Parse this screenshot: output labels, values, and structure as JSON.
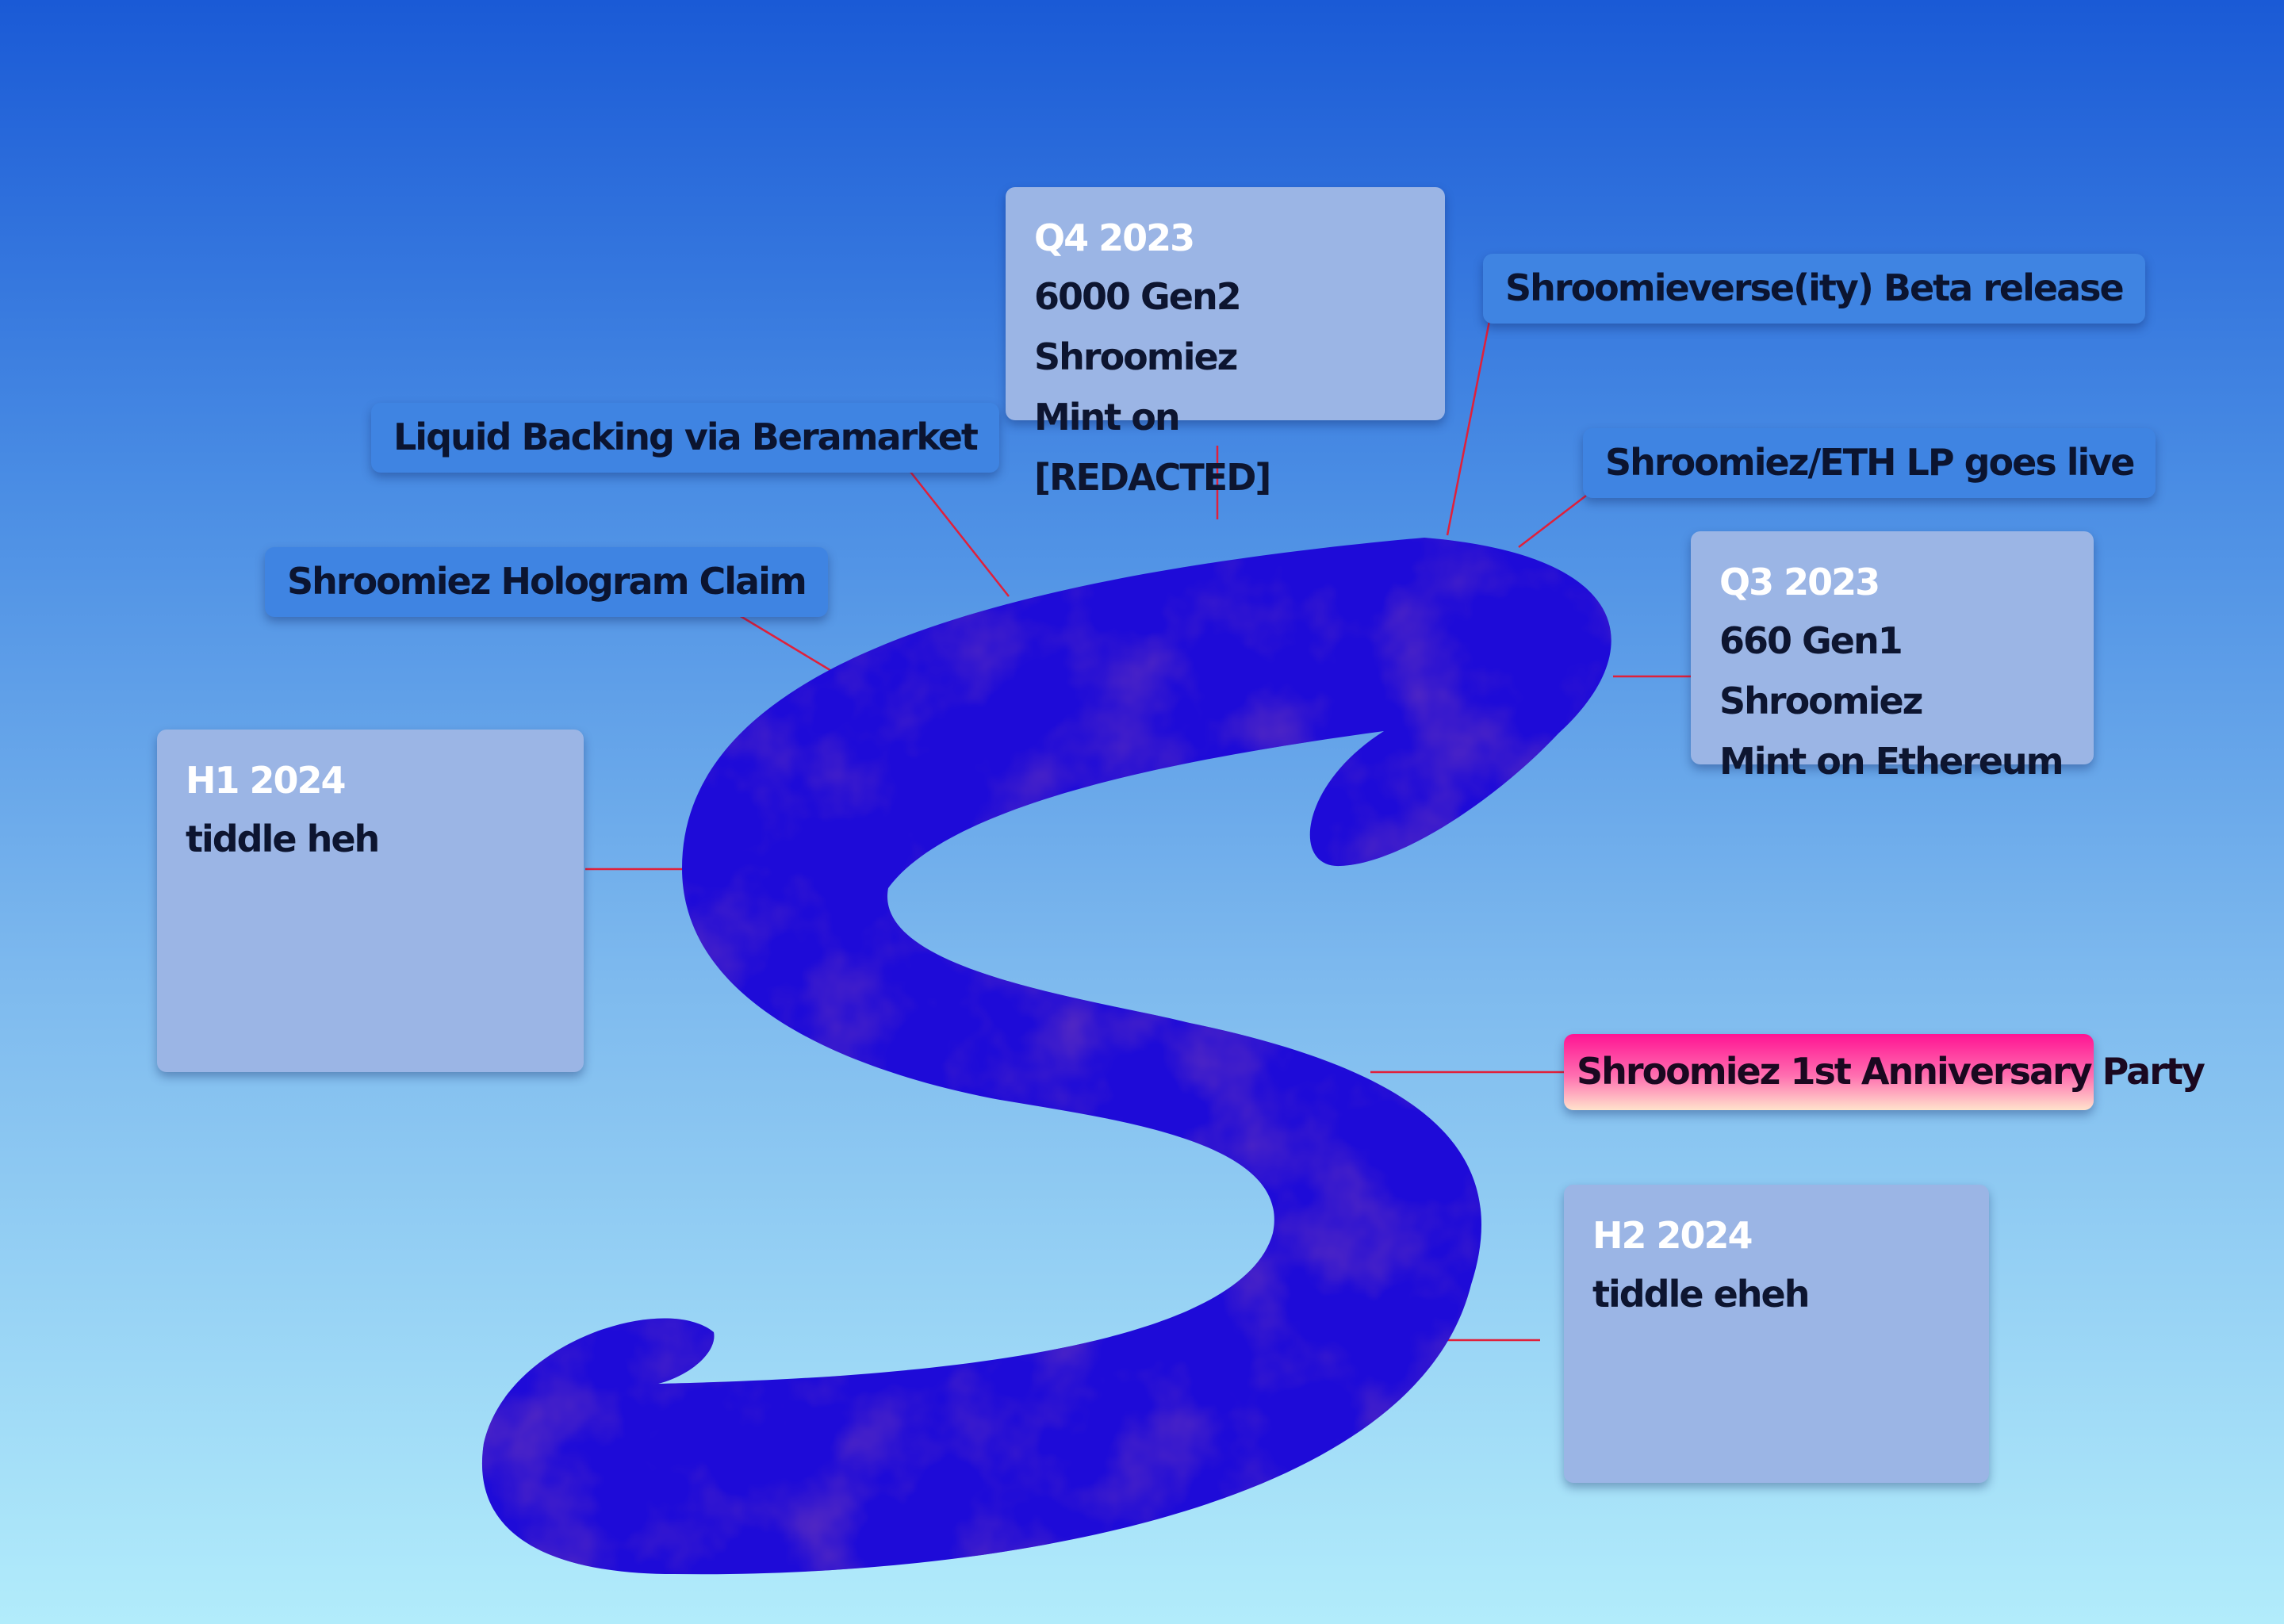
{
  "cards": {
    "q4_2023": {
      "period": "Q4 2023",
      "lines": [
        "6000 Gen2 Shroomiez",
        "Mint on [REDACTED]"
      ]
    },
    "q3_2023": {
      "period": "Q3 2023",
      "lines": [
        "660 Gen1 Shroomiez",
        "Mint on Ethereum"
      ]
    },
    "h1_2024": {
      "period": "H1 2024",
      "lines": [
        "tiddle heh"
      ]
    },
    "h2_2024": {
      "period": "H2 2024",
      "lines": [
        "tiddle eheh"
      ]
    }
  },
  "milestones": {
    "beta_release": "Shroomieverse(ity) Beta release",
    "eth_lp": "Shroomiez/ETH LP goes live",
    "liquid_backing": "Liquid Backing via Beramarket",
    "hologram_claim": "Shroomiez Hologram Claim",
    "anniversary_party": "Shroomiez 1st Anniversary Party"
  },
  "colors": {
    "s_path": "#1e0bd8",
    "s_texture": "#14068f",
    "connector": "#e0203a",
    "card_background": "#9bb5e5",
    "pill_background": "#3f84e2",
    "party_gradient_top": "#ff1493",
    "party_gradient_bottom": "#ffe3cc"
  }
}
